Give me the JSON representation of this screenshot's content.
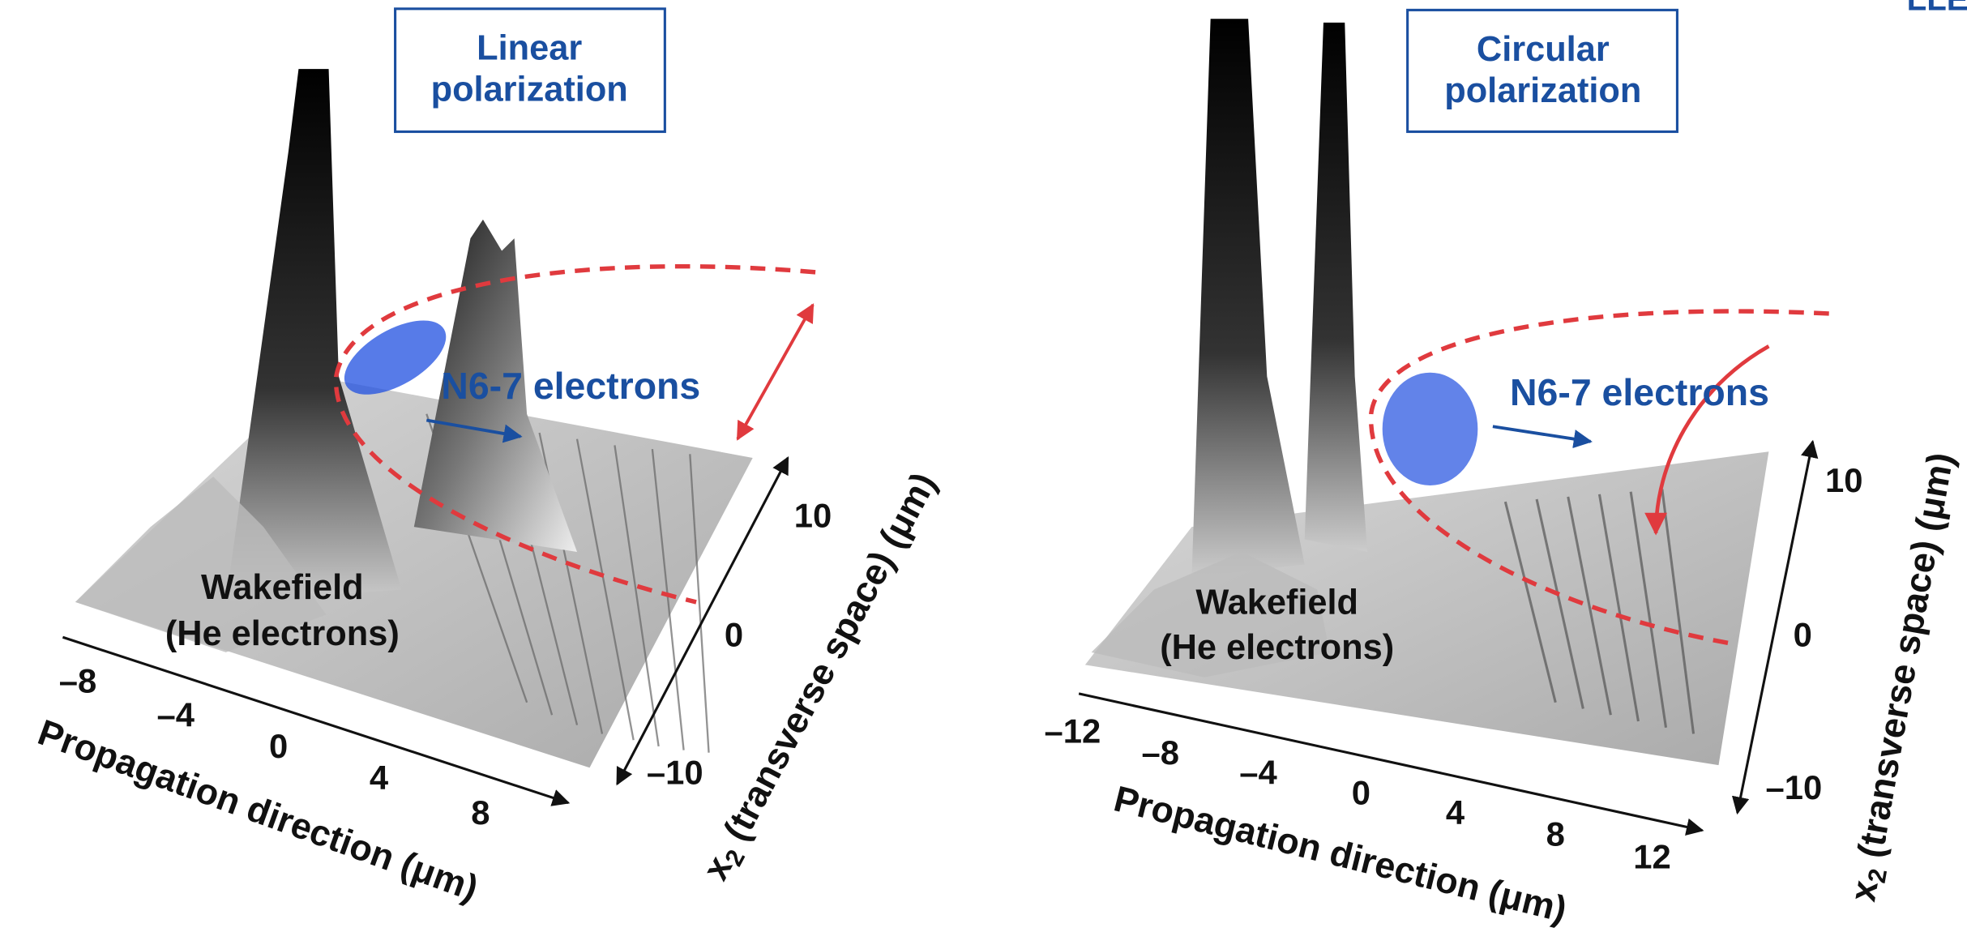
{
  "brand": "LLE",
  "panels": [
    {
      "title": [
        "Linear",
        "polarization"
      ],
      "beam_label": "N6-7 electrons",
      "wake_label": [
        "Wakefield",
        "(He electrons)"
      ],
      "x_ticks": [
        "–8",
        "–4",
        "0",
        "4",
        "8"
      ],
      "x_label": "Propagation direction (μm)",
      "y_ticks": [
        "10",
        "0",
        "–10"
      ],
      "y_label": {
        "var": "x",
        "sub": "2",
        "text": " (transverse space) (μm)"
      }
    },
    {
      "title": [
        "Circular",
        "polarization"
      ],
      "beam_label": "N6-7 electrons",
      "wake_label": [
        "Wakefield",
        "(He electrons)"
      ],
      "x_ticks": [
        "–12",
        "–8",
        "–4",
        "0",
        "4",
        "8",
        "12"
      ],
      "x_label": "Propagation direction (μm)",
      "y_ticks": [
        "10",
        "0",
        "–10"
      ],
      "y_label": {
        "var": "x",
        "sub": "2",
        "text": " (transverse space) (μm)"
      }
    }
  ]
}
